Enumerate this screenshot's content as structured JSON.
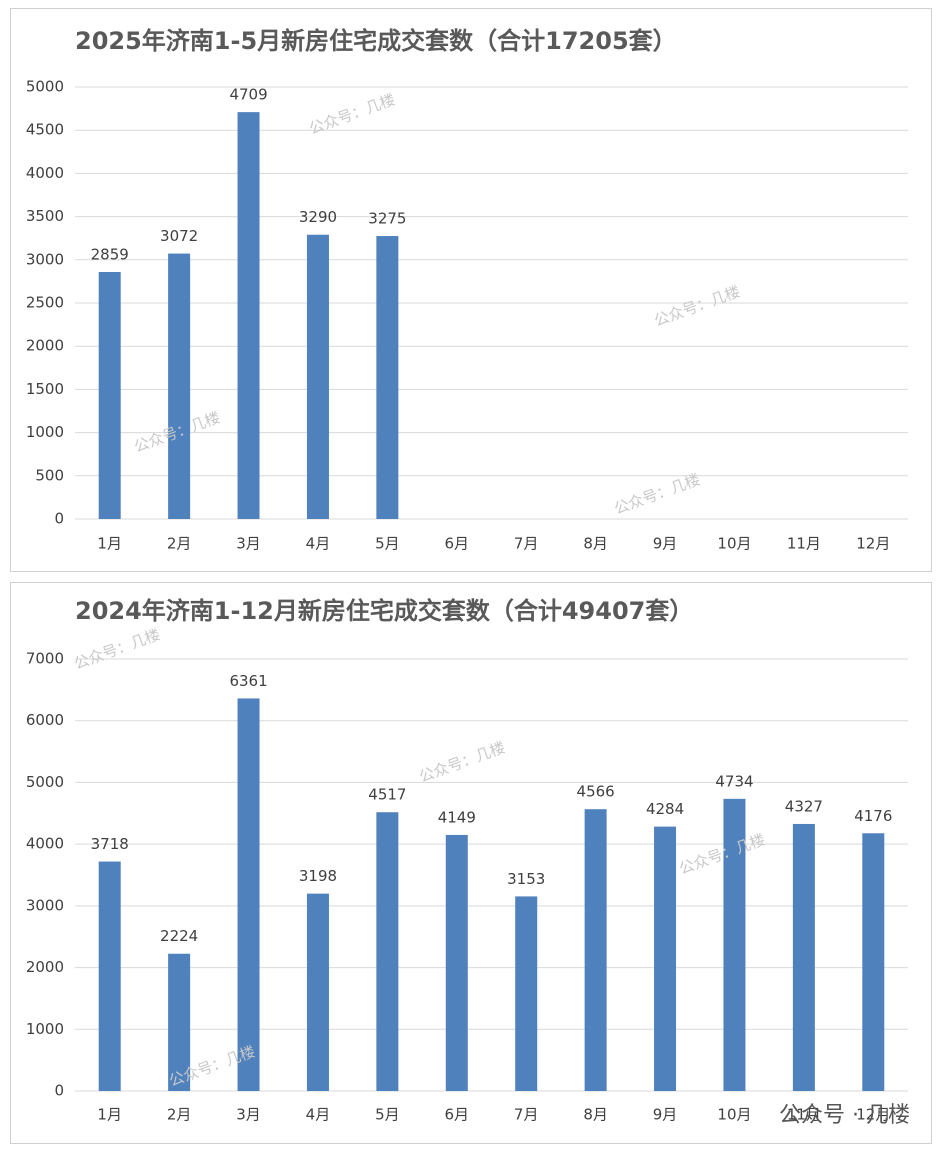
{
  "chart_data": [
    {
      "type": "bar",
      "title": "2025年济南1-5月新房住宅成交套数（合计17205套）",
      "categories": [
        "1月",
        "2月",
        "3月",
        "4月",
        "5月",
        "6月",
        "7月",
        "8月",
        "9月",
        "10月",
        "11月",
        "12月"
      ],
      "values": [
        2859,
        3072,
        4709,
        3290,
        3275,
        null,
        null,
        null,
        null,
        null,
        null,
        null
      ],
      "color": "#4f81bd",
      "ylim": [
        0,
        5000
      ],
      "yticks": [
        0,
        500,
        1000,
        1500,
        2000,
        2500,
        3000,
        3500,
        4000,
        4500,
        5000
      ],
      "grid": true
    },
    {
      "type": "bar",
      "title": "2024年济南1-12月新房住宅成交套数（合计49407套）",
      "categories": [
        "1月",
        "2月",
        "3月",
        "4月",
        "5月",
        "6月",
        "7月",
        "8月",
        "9月",
        "10月",
        "11月",
        "12月"
      ],
      "values": [
        3718,
        2224,
        6361,
        3198,
        4517,
        4149,
        3153,
        4566,
        4284,
        4734,
        4327,
        4176
      ],
      "color": "#4f81bd",
      "ylim": [
        0,
        7000
      ],
      "yticks": [
        0,
        1000,
        2000,
        3000,
        4000,
        5000,
        6000,
        7000
      ],
      "grid": true
    }
  ],
  "watermark": "公众号：几楼",
  "footer": "公众号 · 几楼"
}
